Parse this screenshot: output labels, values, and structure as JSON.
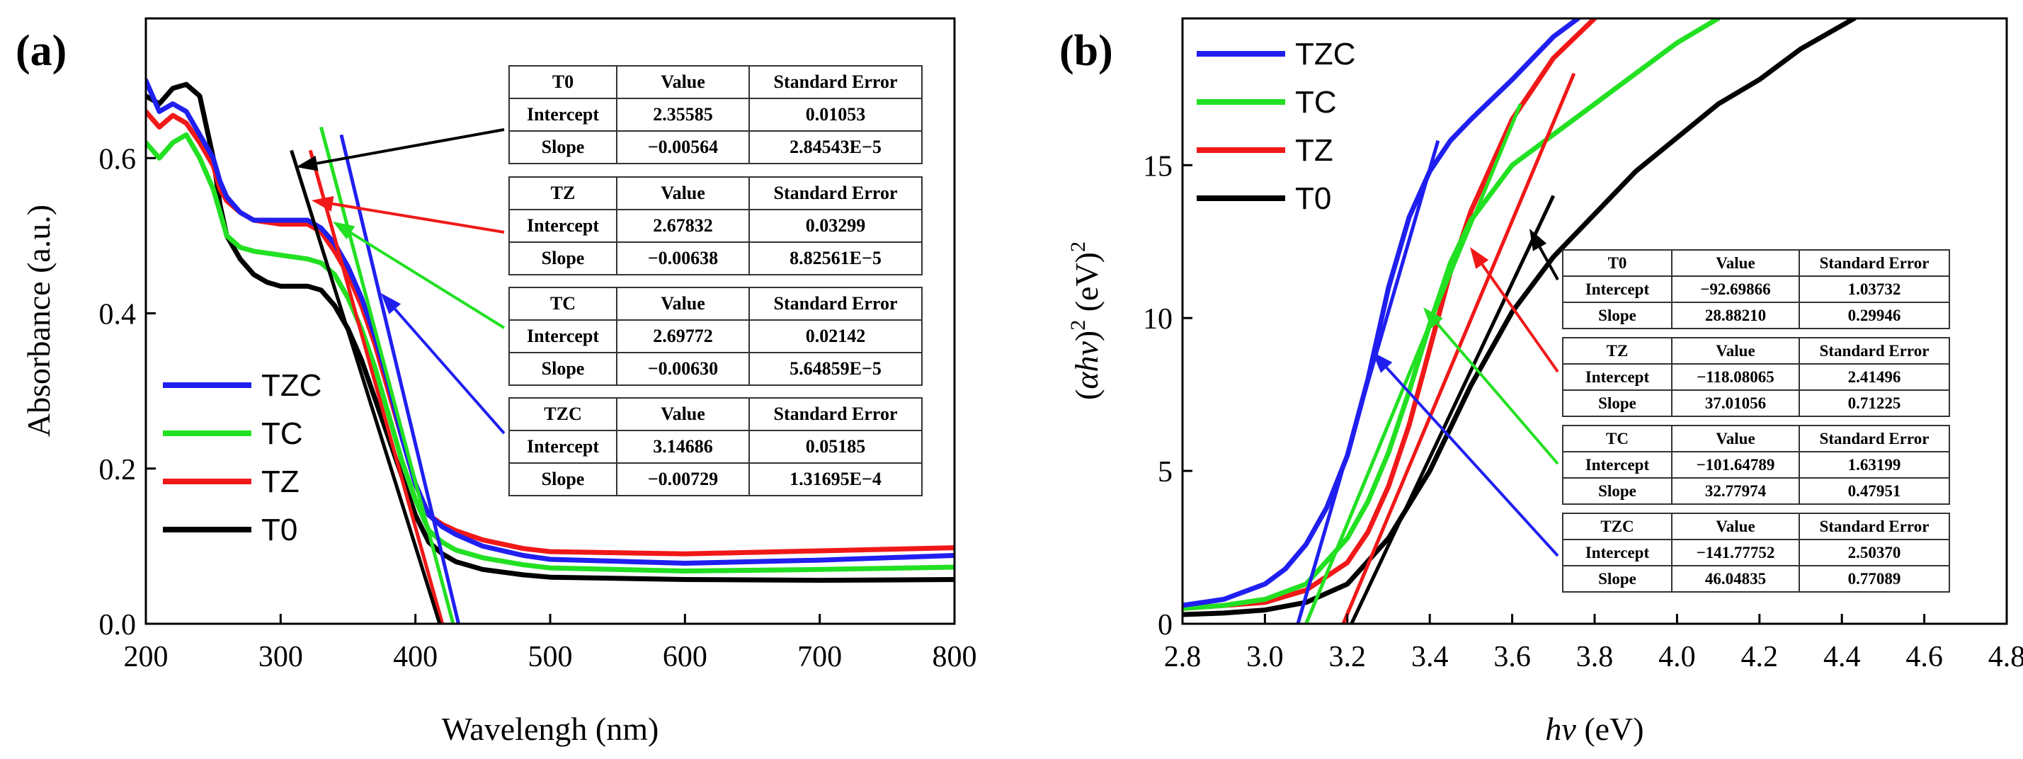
{
  "panels": [
    {
      "id": "a",
      "panel_label": "(a)",
      "xlabel": "Wavelengh (nm)",
      "ylabel": "Absorbance (a.u.)",
      "xticks": [
        "200",
        "300",
        "400",
        "500",
        "600",
        "700",
        "800"
      ],
      "yticks": [
        "0.0",
        "0.2",
        "0.4",
        "0.6"
      ],
      "legend": [
        "TZC",
        "TC",
        "TZ",
        "T0"
      ],
      "tables": [
        {
          "sample": "T0",
          "rows": [
            [
              "Intercept",
              "2.35585",
              "0.01053"
            ],
            [
              "Slope",
              "−0.00564",
              "2.84543E−5"
            ]
          ]
        },
        {
          "sample": "TZ",
          "rows": [
            [
              "Intercept",
              "2.67832",
              "0.03299"
            ],
            [
              "Slope",
              "−0.00638",
              "8.82561E−5"
            ]
          ]
        },
        {
          "sample": "TC",
          "rows": [
            [
              "Intercept",
              "2.69772",
              "0.02142"
            ],
            [
              "Slope",
              "−0.00630",
              "5.64859E−5"
            ]
          ]
        },
        {
          "sample": "TZC",
          "rows": [
            [
              "Intercept",
              "3.14686",
              "0.05185"
            ],
            [
              "Slope",
              "−0.00729",
              "1.31695E−4"
            ]
          ]
        }
      ]
    },
    {
      "id": "b",
      "panel_label": "(b)",
      "xlabel_italic": "hν",
      "xlabel_rest": " (eV)",
      "ylabel": {
        "open": "(",
        "alpha": "αhν",
        "close": ")",
        "sup1": "2",
        "unit": " (eV)",
        "sup2": "2"
      },
      "xticks": [
        "2.8",
        "3.0",
        "3.2",
        "3.4",
        "3.6",
        "3.8",
        "4.0",
        "4.2",
        "4.4",
        "4.6",
        "4.8"
      ],
      "yticks": [
        "0",
        "5",
        "10",
        "15"
      ],
      "legend": [
        "TZC",
        "TC",
        "TZ",
        "T0"
      ],
      "tables": [
        {
          "sample": "T0",
          "rows": [
            [
              "Intercept",
              "−92.69866",
              "1.03732"
            ],
            [
              "Slope",
              "28.88210",
              "0.29946"
            ]
          ]
        },
        {
          "sample": "TZ",
          "rows": [
            [
              "Intercept",
              "−118.08065",
              "2.41496"
            ],
            [
              "Slope",
              "37.01056",
              "0.71225"
            ]
          ]
        },
        {
          "sample": "TC",
          "rows": [
            [
              "Intercept",
              "−101.64789",
              "1.63199"
            ],
            [
              "Slope",
              "32.77974",
              "0.47951"
            ]
          ]
        },
        {
          "sample": "TZC",
          "rows": [
            [
              "Intercept",
              "−141.77752",
              "2.50370"
            ],
            [
              "Slope",
              "46.04835",
              "0.77089"
            ]
          ]
        }
      ]
    }
  ],
  "table_headers": [
    "Value",
    "Standard Error"
  ],
  "colors": {
    "TZC": "#1f1ff0",
    "TC": "#22e022",
    "TZ": "#f01818",
    "T0": "#000000"
  },
  "chart_data": [
    {
      "type": "line",
      "title": "(a)",
      "xlabel": "Wavelengh (nm)",
      "ylabel": "Absorbance (a.u.)",
      "xlim": [
        200,
        800
      ],
      "ylim": [
        0,
        0.78
      ],
      "legend_position": "bottom-left",
      "series": [
        {
          "name": "TZC",
          "x": [
            200,
            210,
            220,
            230,
            240,
            250,
            255,
            260,
            270,
            280,
            300,
            320,
            330,
            340,
            350,
            360,
            370,
            380,
            390,
            400,
            410,
            420,
            430,
            450,
            480,
            500,
            600,
            700,
            800
          ],
          "y": [
            0.7,
            0.66,
            0.67,
            0.66,
            0.63,
            0.6,
            0.57,
            0.55,
            0.53,
            0.52,
            0.52,
            0.52,
            0.51,
            0.49,
            0.46,
            0.42,
            0.37,
            0.31,
            0.24,
            0.18,
            0.14,
            0.125,
            0.115,
            0.1,
            0.088,
            0.083,
            0.078,
            0.082,
            0.088
          ]
        },
        {
          "name": "TC",
          "x": [
            200,
            210,
            220,
            230,
            240,
            250,
            255,
            260,
            270,
            280,
            300,
            320,
            330,
            340,
            350,
            360,
            370,
            380,
            390,
            400,
            410,
            420,
            430,
            450,
            480,
            500,
            600,
            700,
            800
          ],
          "y": [
            0.62,
            0.6,
            0.62,
            0.63,
            0.6,
            0.56,
            0.53,
            0.5,
            0.485,
            0.48,
            0.475,
            0.47,
            0.465,
            0.45,
            0.42,
            0.38,
            0.33,
            0.27,
            0.21,
            0.16,
            0.12,
            0.105,
            0.095,
            0.085,
            0.076,
            0.072,
            0.068,
            0.07,
            0.073
          ]
        },
        {
          "name": "TZ",
          "x": [
            200,
            210,
            220,
            230,
            240,
            250,
            255,
            260,
            270,
            280,
            300,
            320,
            330,
            340,
            350,
            360,
            370,
            380,
            390,
            400,
            410,
            420,
            430,
            450,
            480,
            500,
            600,
            700,
            800
          ],
          "y": [
            0.66,
            0.64,
            0.655,
            0.645,
            0.62,
            0.59,
            0.56,
            0.545,
            0.53,
            0.52,
            0.515,
            0.515,
            0.505,
            0.48,
            0.45,
            0.41,
            0.36,
            0.3,
            0.24,
            0.18,
            0.14,
            0.128,
            0.12,
            0.108,
            0.097,
            0.093,
            0.09,
            0.094,
            0.098
          ]
        },
        {
          "name": "T0",
          "x": [
            200,
            210,
            220,
            230,
            240,
            250,
            255,
            260,
            270,
            280,
            290,
            300,
            320,
            330,
            340,
            350,
            360,
            370,
            380,
            390,
            400,
            410,
            420,
            430,
            450,
            480,
            500,
            600,
            700,
            800
          ],
          "y": [
            0.68,
            0.67,
            0.69,
            0.695,
            0.68,
            0.6,
            0.54,
            0.5,
            0.47,
            0.45,
            0.44,
            0.435,
            0.435,
            0.43,
            0.41,
            0.38,
            0.34,
            0.29,
            0.24,
            0.19,
            0.14,
            0.105,
            0.09,
            0.08,
            0.07,
            0.063,
            0.06,
            0.057,
            0.056,
            0.057
          ]
        }
      ],
      "fit_lines": [
        {
          "name": "TZC",
          "x": [
            345,
            432
          ],
          "y": [
            0.63,
            0.0
          ]
        },
        {
          "name": "TC",
          "x": [
            330,
            428
          ],
          "y": [
            0.64,
            0.0
          ]
        },
        {
          "name": "TZ",
          "x": [
            322,
            420
          ],
          "y": [
            0.61,
            0.0
          ]
        },
        {
          "name": "T0",
          "x": [
            308,
            418
          ],
          "y": [
            0.61,
            0.0
          ]
        }
      ]
    },
    {
      "type": "line",
      "title": "(b)",
      "xlabel": "hν (eV)",
      "ylabel": "(αhν)^2 (eV)^2",
      "xlim": [
        2.8,
        4.8
      ],
      "ylim": [
        0,
        19.8
      ],
      "legend_position": "top-left",
      "series": [
        {
          "name": "TZC",
          "x": [
            2.8,
            2.9,
            3.0,
            3.05,
            3.1,
            3.15,
            3.2,
            3.25,
            3.3,
            3.35,
            3.4,
            3.45,
            3.5,
            3.6,
            3.7,
            3.76
          ],
          "y": [
            0.6,
            0.8,
            1.3,
            1.8,
            2.6,
            3.8,
            5.5,
            8.0,
            11.0,
            13.3,
            14.8,
            15.8,
            16.5,
            17.8,
            19.2,
            19.8
          ]
        },
        {
          "name": "TC",
          "x": [
            2.8,
            2.9,
            3.0,
            3.1,
            3.2,
            3.25,
            3.3,
            3.35,
            3.4,
            3.45,
            3.5,
            3.6,
            3.7,
            3.8,
            3.9,
            4.0,
            4.1
          ],
          "y": [
            0.5,
            0.6,
            0.8,
            1.3,
            2.8,
            4.0,
            5.6,
            7.6,
            9.8,
            11.8,
            13.2,
            15.0,
            16.0,
            17.0,
            18.0,
            19.0,
            19.8
          ]
        },
        {
          "name": "TZ",
          "x": [
            2.8,
            2.9,
            3.0,
            3.1,
            3.2,
            3.25,
            3.3,
            3.35,
            3.4,
            3.45,
            3.5,
            3.55,
            3.6,
            3.7,
            3.8
          ],
          "y": [
            0.5,
            0.6,
            0.7,
            1.1,
            2.0,
            3.0,
            4.5,
            6.5,
            9.0,
            11.5,
            13.5,
            15.0,
            16.5,
            18.5,
            19.8
          ]
        },
        {
          "name": "T0",
          "x": [
            2.8,
            2.9,
            3.0,
            3.1,
            3.2,
            3.3,
            3.4,
            3.5,
            3.6,
            3.7,
            3.8,
            3.9,
            4.0,
            4.1,
            4.2,
            4.3,
            4.43
          ],
          "y": [
            0.3,
            0.35,
            0.45,
            0.7,
            1.3,
            2.8,
            5.0,
            7.8,
            10.2,
            12.0,
            13.4,
            14.8,
            15.9,
            17.0,
            17.8,
            18.8,
            19.8
          ]
        }
      ],
      "fit_lines": [
        {
          "name": "TZC",
          "x": [
            3.08,
            3.42
          ],
          "y": [
            0.0,
            15.8
          ]
        },
        {
          "name": "TC",
          "x": [
            3.1,
            3.62
          ],
          "y": [
            0.0,
            17.0
          ]
        },
        {
          "name": "TZ",
          "x": [
            3.19,
            3.75
          ],
          "y": [
            0.0,
            18.0
          ]
        },
        {
          "name": "T0",
          "x": [
            3.21,
            3.7
          ],
          "y": [
            0.0,
            14.0
          ]
        }
      ]
    }
  ]
}
